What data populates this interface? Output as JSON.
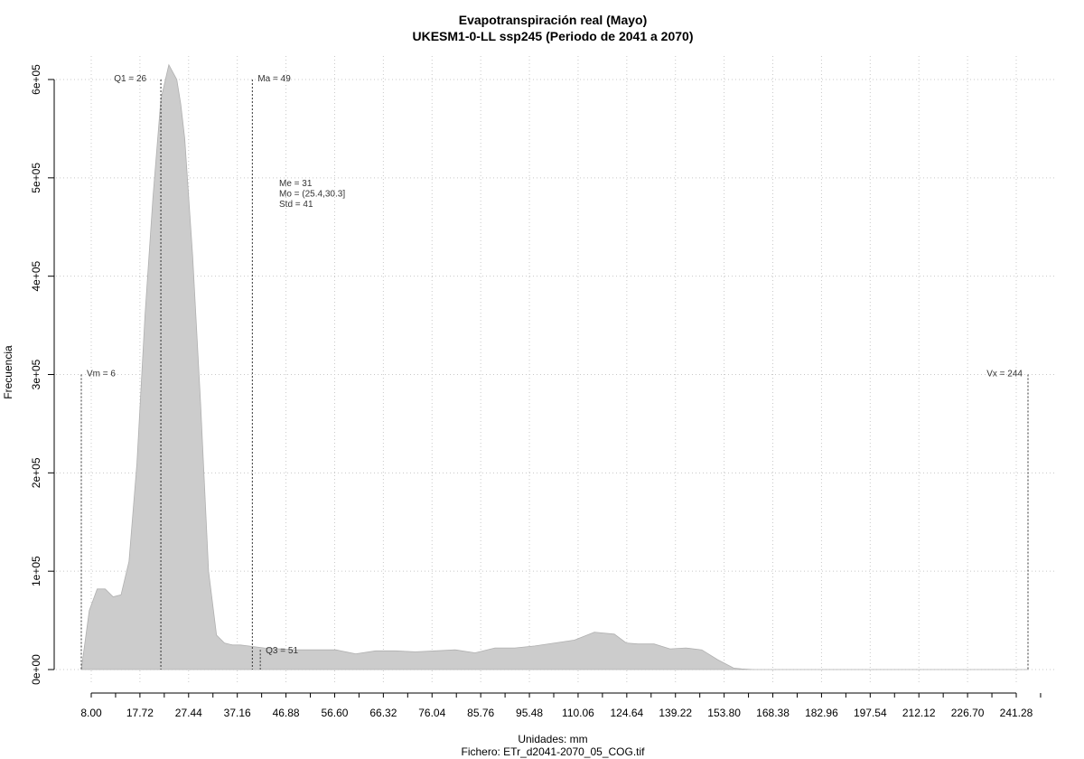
{
  "chart_data": {
    "type": "area",
    "title": "Evapotranspiración real (Mayo)",
    "subtitle": "UKESM1-0-LL ssp245 (Periodo de 2041 a 2070)",
    "xlabel": "Unidades: mm",
    "ylabel": "Frecuencia",
    "footer": "Fichero: ETr_d2041-2070_05_COG.tif",
    "x_ticks": [
      "8.00",
      "17.72",
      "27.44",
      "37.16",
      "46.88",
      "56.60",
      "66.32",
      "76.04",
      "85.76",
      "95.48",
      "110.06",
      "124.64",
      "139.22",
      "153.80",
      "168.38",
      "182.96",
      "197.54",
      "212.12",
      "226.70",
      "241.28"
    ],
    "y_ticks": [
      "0e+00",
      "1e+05",
      "2e+05",
      "3e+05",
      "4e+05",
      "5e+05",
      "6e+05"
    ],
    "xlim": [
      6,
      244
    ],
    "ylim": [
      0,
      600000
    ],
    "grid": true,
    "fill_color": "#cccccc",
    "x": [
      6,
      8,
      10,
      12,
      14,
      16,
      18,
      20,
      22,
      24,
      26,
      28,
      30,
      31,
      32,
      34,
      36,
      38,
      40,
      42,
      44,
      46,
      48,
      50,
      52,
      56,
      60,
      65,
      70,
      75,
      80,
      85,
      90,
      95,
      100,
      105,
      110,
      115,
      120,
      125,
      130,
      135,
      140,
      143,
      146,
      150,
      154,
      158,
      162,
      166,
      170,
      172,
      175,
      180,
      200,
      220,
      244
    ],
    "y": [
      0,
      60000,
      82000,
      82000,
      74000,
      76000,
      110000,
      210000,
      360000,
      480000,
      580000,
      615000,
      600000,
      575000,
      540000,
      420000,
      270000,
      100000,
      35000,
      27000,
      25000,
      25000,
      24000,
      23000,
      22000,
      21000,
      20000,
      20000,
      20000,
      16000,
      19000,
      19000,
      18000,
      19000,
      20000,
      17000,
      22000,
      22000,
      24000,
      27000,
      30000,
      38000,
      36000,
      27000,
      26000,
      26000,
      21000,
      22000,
      20000,
      10000,
      1500,
      600,
      0,
      0,
      0,
      0,
      0
    ],
    "annotations": [
      {
        "label": "Vm = 6",
        "x": 6,
        "y": 300000
      },
      {
        "label": "Q1 = 26",
        "x": 26,
        "y": 600000
      },
      {
        "label": "Ma = 49",
        "x": 49,
        "y": 600000
      },
      {
        "label": "Q3 = 51",
        "x": 51,
        "y": 20000
      },
      {
        "label": "Vx = 244",
        "x": 244,
        "y": 300000
      }
    ],
    "stats": [
      "Me = 31",
      "Mo = (25.4,30.3]",
      "Std = 41"
    ]
  }
}
